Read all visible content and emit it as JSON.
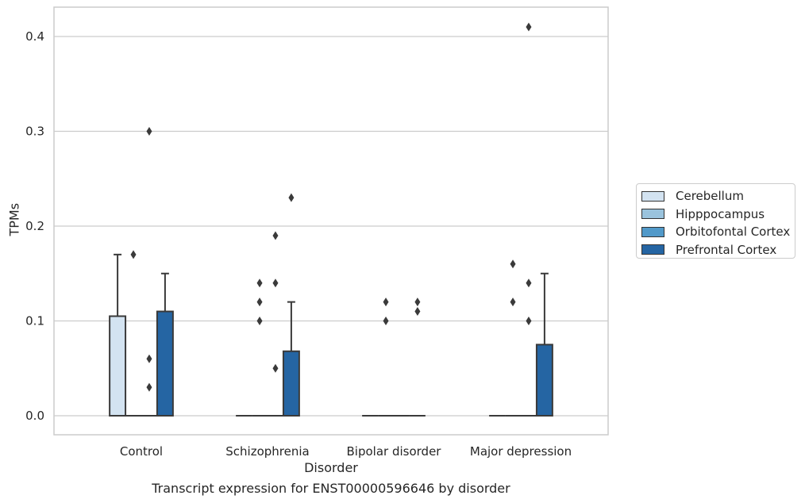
{
  "chart_data": {
    "type": "box",
    "title": "Transcript expression for ENST00000596646 by disorder",
    "xlabel": "Disorder",
    "ylabel": "TPMs",
    "ylim": [
      -0.02,
      0.43
    ],
    "yticks": [
      0.0,
      0.1,
      0.2,
      0.3,
      0.4
    ],
    "ytick_labels": [
      "0.0",
      "0.1",
      "0.2",
      "0.3",
      "0.4"
    ],
    "categories": [
      "Control",
      "Schizophrenia",
      "Bipolar disorder",
      "Major depression"
    ],
    "grid": "horizontal",
    "legend_position": "right",
    "series": [
      {
        "name": "Cerebellum",
        "color": "#d3e3f1",
        "boxes": [
          {
            "q1": 0.0,
            "median": 0.0,
            "q3": 0.105,
            "whisker_low": 0.0,
            "whisker_high": 0.17,
            "outliers": []
          },
          {
            "q1": 0.0,
            "median": 0.0,
            "q3": 0.0,
            "whisker_low": 0.0,
            "whisker_high": 0.0,
            "outliers": []
          },
          {
            "q1": 0.0,
            "median": 0.0,
            "q3": 0.0,
            "whisker_low": 0.0,
            "whisker_high": 0.0,
            "outliers": []
          },
          {
            "q1": 0.0,
            "median": 0.0,
            "q3": 0.0,
            "whisker_low": 0.0,
            "whisker_high": 0.0,
            "outliers": []
          }
        ]
      },
      {
        "name": "Hipppocampus",
        "color": "#9ac3dd",
        "boxes": [
          {
            "q1": 0.0,
            "median": 0.0,
            "q3": 0.0,
            "whisker_low": 0.0,
            "whisker_high": 0.0,
            "outliers": [
              0.17
            ]
          },
          {
            "q1": 0.0,
            "median": 0.0,
            "q3": 0.0,
            "whisker_low": 0.0,
            "whisker_high": 0.0,
            "outliers": [
              0.1,
              0.12,
              0.14
            ]
          },
          {
            "q1": 0.0,
            "median": 0.0,
            "q3": 0.0,
            "whisker_low": 0.0,
            "whisker_high": 0.0,
            "outliers": [
              0.1,
              0.12
            ]
          },
          {
            "q1": 0.0,
            "median": 0.0,
            "q3": 0.0,
            "whisker_low": 0.0,
            "whisker_high": 0.0,
            "outliers": [
              0.12,
              0.16
            ]
          }
        ]
      },
      {
        "name": "Orbitofontal Cortex",
        "color": "#5199c9",
        "boxes": [
          {
            "q1": 0.0,
            "median": 0.0,
            "q3": 0.0,
            "whisker_low": 0.0,
            "whisker_high": 0.0,
            "outliers": [
              0.03,
              0.06,
              0.3
            ]
          },
          {
            "q1": 0.0,
            "median": 0.0,
            "q3": 0.0,
            "whisker_low": 0.0,
            "whisker_high": 0.0,
            "outliers": [
              0.14,
              0.19,
              0.05
            ]
          },
          {
            "q1": 0.0,
            "median": 0.0,
            "q3": 0.0,
            "whisker_low": 0.0,
            "whisker_high": 0.0,
            "outliers": []
          },
          {
            "q1": 0.0,
            "median": 0.0,
            "q3": 0.0,
            "whisker_low": 0.0,
            "whisker_high": 0.0,
            "outliers": [
              0.14,
              0.41,
              0.1
            ]
          }
        ]
      },
      {
        "name": "Prefrontal Cortex",
        "color": "#2565a3",
        "boxes": [
          {
            "q1": 0.0,
            "median": 0.0,
            "q3": 0.11,
            "whisker_low": 0.0,
            "whisker_high": 0.15,
            "outliers": []
          },
          {
            "q1": 0.0,
            "median": 0.0,
            "q3": 0.068,
            "whisker_low": 0.0,
            "whisker_high": 0.12,
            "outliers": [
              0.23
            ]
          },
          {
            "q1": 0.0,
            "median": 0.0,
            "q3": 0.0,
            "whisker_low": 0.0,
            "whisker_high": 0.0,
            "outliers": [
              0.11,
              0.12
            ]
          },
          {
            "q1": 0.0,
            "median": 0.0,
            "q3": 0.075,
            "whisker_low": 0.0,
            "whisker_high": 0.15,
            "outliers": []
          }
        ]
      }
    ]
  }
}
